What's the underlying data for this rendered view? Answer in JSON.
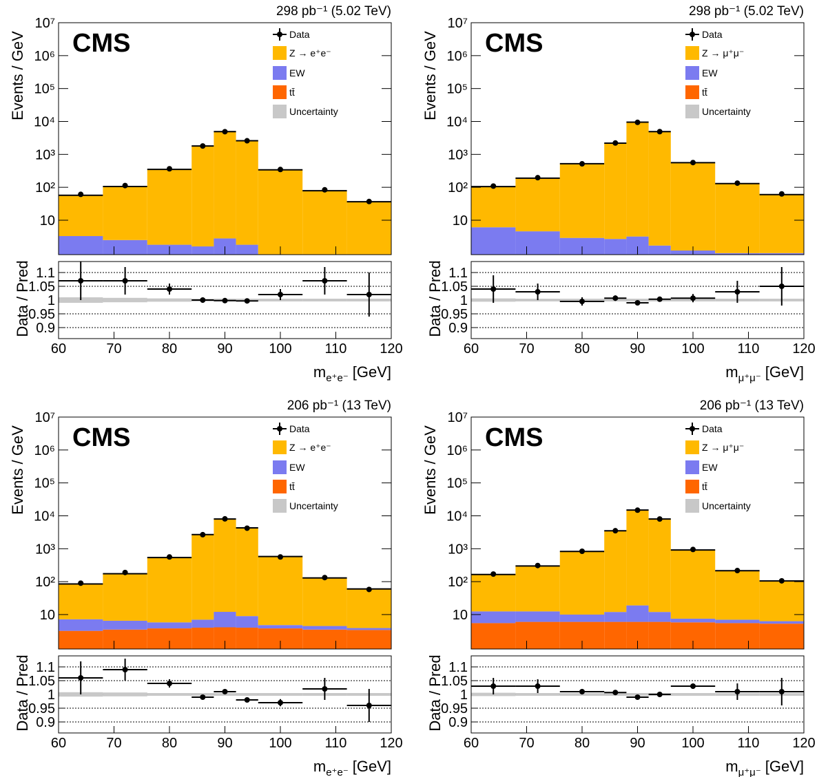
{
  "chart_data": [
    {
      "type": "histogram",
      "experiment": "CMS",
      "lumi": "298 pb⁻¹ (5.02 TeV)",
      "ylabel": "Events / GeV",
      "ratio_ylabel": "Data / Pred",
      "xlabel": {
        "symbol": "m",
        "subscript": "e⁺e⁻",
        "unit": "[GeV]"
      },
      "bins": [
        60,
        68,
        76,
        84,
        88,
        92,
        96,
        104,
        112,
        120
      ],
      "xlim": [
        60,
        120
      ],
      "xticks": [
        60,
        70,
        80,
        90,
        100,
        110,
        120
      ],
      "log_y": true,
      "ylim": [
        0.9,
        10000000
      ],
      "yticks": [
        10,
        {
          "value": 100,
          "label": "10²"
        },
        {
          "value": 1000,
          "label": "10³"
        },
        {
          "value": 10000,
          "label": "10⁴"
        },
        {
          "value": 100000,
          "label": "10⁵"
        },
        {
          "value": 1000000,
          "label": "10⁶"
        },
        {
          "value": 10000000,
          "label": "10⁷"
        }
      ],
      "ratio_ylim": [
        0.86,
        1.14
      ],
      "ratio_yticks": [
        0.9,
        0.95,
        1,
        1.05,
        1.1
      ],
      "ratio_grid": true,
      "series": [
        {
          "name": "Z → e⁺e⁻",
          "color": "#ffb900",
          "values": [
            54,
            103,
            348,
            1798,
            4897,
            2598,
            340,
            78,
            36
          ]
        },
        {
          "name": "EW",
          "color": "#7b7bf0",
          "values": [
            3.2,
            2.4,
            1.7,
            1.5,
            2.7,
            1.7,
            0.5,
            0.4,
            0.4
          ]
        },
        {
          "name": "tt̄",
          "color": "#ff6600",
          "values": [
            0.1,
            0.1,
            0.1,
            0.1,
            0.1,
            0.1,
            0.1,
            0.1,
            0.1
          ]
        }
      ],
      "data": {
        "name": "Data",
        "values": [
          61,
          113,
          365,
          1800,
          4890,
          2592,
          347,
          84,
          37
        ],
        "ratio": [
          1.07,
          1.07,
          1.04,
          1.0,
          0.998,
          0.997,
          1.02,
          1.07,
          1.02
        ],
        "ratio_errors": [
          0.07,
          0.05,
          0.02,
          0.01,
          0.005,
          0.007,
          0.02,
          0.05,
          0.08
        ]
      },
      "uncertainty": {
        "name": "Uncertainty",
        "color": "#c8c8c8",
        "values": [
          0.01,
          0.008,
          0.006,
          0.005,
          0.005,
          0.005,
          0.005,
          0.005,
          0.005
        ]
      }
    },
    {
      "type": "histogram",
      "experiment": "CMS",
      "lumi": "298 pb⁻¹ (5.02 TeV)",
      "ylabel": "Events / GeV",
      "ratio_ylabel": "Data / Pred",
      "xlabel": {
        "symbol": "m",
        "subscript": "μ⁺μ⁻",
        "unit": "[GeV]"
      },
      "bins": [
        60,
        68,
        76,
        84,
        88,
        92,
        96,
        104,
        112,
        120
      ],
      "xlim": [
        60,
        120
      ],
      "xticks": [
        60,
        70,
        80,
        90,
        100,
        110,
        120
      ],
      "log_y": true,
      "ylim": [
        0.9,
        10000000
      ],
      "yticks": [
        10,
        {
          "value": 100,
          "label": "10²"
        },
        {
          "value": 1000,
          "label": "10³"
        },
        {
          "value": 10000,
          "label": "10⁴"
        },
        {
          "value": 100000,
          "label": "10⁵"
        },
        {
          "value": 1000000,
          "label": "10⁶"
        },
        {
          "value": 10000000,
          "label": "10⁷"
        }
      ],
      "ratio_ylim": [
        0.86,
        1.14
      ],
      "ratio_yticks": [
        0.9,
        0.95,
        1,
        1.05,
        1.1
      ],
      "ratio_grid": true,
      "series": [
        {
          "name": "Z → μ⁺μ⁻",
          "color": "#ffb900",
          "values": [
            99,
            185,
            517,
            2197,
            9497,
            4898,
            559,
            129,
            59
          ]
        },
        {
          "name": "EW",
          "color": "#7b7bf0",
          "values": [
            6,
            4.5,
            2.8,
            2.6,
            3.1,
            1.6,
            1.1,
            0.9,
            0.9
          ]
        },
        {
          "name": "tt̄",
          "color": "#ff6600",
          "values": [
            0.1,
            0.1,
            0.1,
            0.1,
            0.1,
            0.1,
            0.1,
            0.1,
            0.1
          ]
        }
      ],
      "data": {
        "name": "Data",
        "values": [
          109,
          196,
          517,
          2215,
          9400,
          4915,
          564,
          134,
          63
        ],
        "ratio": [
          1.04,
          1.03,
          0.995,
          1.007,
          0.99,
          1.003,
          1.007,
          1.03,
          1.05
        ],
        "ratio_errors": [
          0.05,
          0.03,
          0.015,
          0.01,
          0.005,
          0.005,
          0.015,
          0.04,
          0.07
        ]
      },
      "uncertainty": {
        "name": "Uncertainty",
        "color": "#c8c8c8",
        "values": [
          0.006,
          0.005,
          0.005,
          0.005,
          0.005,
          0.005,
          0.005,
          0.005,
          0.005
        ]
      }
    },
    {
      "type": "histogram",
      "experiment": "CMS",
      "lumi": "206 pb⁻¹ (13 TeV)",
      "ylabel": "Events / GeV",
      "ratio_ylabel": "Data / Pred",
      "xlabel": {
        "symbol": "m",
        "subscript": "e⁺e⁻",
        "unit": "[GeV]"
      },
      "bins": [
        60,
        68,
        76,
        84,
        88,
        92,
        96,
        104,
        112,
        120
      ],
      "xlim": [
        60,
        120
      ],
      "xticks": [
        60,
        70,
        80,
        90,
        100,
        110,
        120
      ],
      "log_y": true,
      "ylim": [
        0.9,
        10000000
      ],
      "yticks": [
        10,
        {
          "value": 100,
          "label": "10²"
        },
        {
          "value": 1000,
          "label": "10³"
        },
        {
          "value": 10000,
          "label": "10⁴"
        },
        {
          "value": 100000,
          "label": "10⁵"
        },
        {
          "value": 1000000,
          "label": "10⁶"
        },
        {
          "value": 10000000,
          "label": "10⁷"
        }
      ],
      "ratio_ylim": [
        0.86,
        1.14
      ],
      "ratio_yticks": [
        0.9,
        0.95,
        1,
        1.05,
        1.1
      ],
      "ratio_grid": true,
      "series": [
        {
          "name": "Z → e⁺e⁻",
          "color": "#ffb900",
          "values": [
            78,
            168,
            534,
            2693,
            7988,
            4291,
            575,
            125,
            56
          ]
        },
        {
          "name": "EW",
          "color": "#7b7bf0",
          "values": [
            4,
            3,
            2,
            3,
            8,
            5,
            1,
            1,
            0.5
          ]
        },
        {
          "name": "tt̄",
          "color": "#ff6600",
          "values": [
            3.2,
            3.5,
            3.8,
            4,
            4.1,
            4,
            3.8,
            3.5,
            3.4
          ]
        }
      ],
      "data": {
        "name": "Data",
        "values": [
          90,
          190,
          562,
          2673,
          8080,
          4214,
          563,
          133,
          58
        ],
        "ratio": [
          1.06,
          1.09,
          1.04,
          0.99,
          1.01,
          0.98,
          0.97,
          1.02,
          0.96
        ],
        "ratio_errors": [
          0.06,
          0.04,
          0.015,
          0.008,
          0.006,
          0.006,
          0.013,
          0.04,
          0.06
        ]
      },
      "uncertainty": {
        "name": "Uncertainty",
        "color": "#c8c8c8",
        "values": [
          0.008,
          0.007,
          0.005,
          0.005,
          0.005,
          0.005,
          0.005,
          0.005,
          0.005
        ]
      }
    },
    {
      "type": "histogram",
      "experiment": "CMS",
      "lumi": "206 pb⁻¹ (13 TeV)",
      "ylabel": "Events / GeV",
      "ratio_ylabel": "Data / Pred",
      "xlabel": {
        "symbol": "m",
        "subscript": "μ⁺μ⁻",
        "unit": "[GeV]"
      },
      "bins": [
        60,
        68,
        76,
        84,
        88,
        92,
        96,
        104,
        112,
        120
      ],
      "xlim": [
        60,
        120
      ],
      "xticks": [
        60,
        70,
        80,
        90,
        100,
        110,
        120
      ],
      "log_y": true,
      "ylim": [
        0.9,
        10000000
      ],
      "yticks": [
        10,
        {
          "value": 100,
          "label": "10²"
        },
        {
          "value": 1000,
          "label": "10³"
        },
        {
          "value": 10000,
          "label": "10⁴"
        },
        {
          "value": 100000,
          "label": "10⁵"
        },
        {
          "value": 1000000,
          "label": "10⁶"
        },
        {
          "value": 10000000,
          "label": "10⁷"
        }
      ],
      "ratio_ylim": [
        0.86,
        1.14
      ],
      "ratio_yticks": [
        0.9,
        0.95,
        1,
        1.05,
        1.1
      ],
      "ratio_grid": true,
      "series": [
        {
          "name": "Z → μ⁺μ⁻",
          "color": "#ffb900",
          "values": [
            152,
            287,
            820,
            3488,
            14981,
            7988,
            912,
            208,
            99
          ]
        },
        {
          "name": "EW",
          "color": "#7b7bf0",
          "values": [
            7,
            6.5,
            4,
            6,
            13,
            6,
            1.7,
            1.5,
            1
          ]
        },
        {
          "name": "tt̄",
          "color": "#ff6600",
          "values": [
            5.5,
            6,
            6,
            6,
            6,
            6,
            5.8,
            5.5,
            5.3
          ]
        }
      ],
      "data": {
        "name": "Data",
        "values": [
          170,
          309,
          838,
          3525,
          14850,
          8000,
          948,
          217,
          106
        ],
        "ratio": [
          1.03,
          1.03,
          1.01,
          1.007,
          0.99,
          1.0,
          1.03,
          1.01,
          1.01
        ],
        "ratio_errors": [
          0.03,
          0.025,
          0.01,
          0.007,
          0.004,
          0.004,
          0.01,
          0.03,
          0.05
        ]
      },
      "uncertainty": {
        "name": "Uncertainty",
        "color": "#c8c8c8",
        "values": [
          0.006,
          0.005,
          0.005,
          0.005,
          0.005,
          0.005,
          0.005,
          0.005,
          0.005
        ]
      }
    }
  ]
}
